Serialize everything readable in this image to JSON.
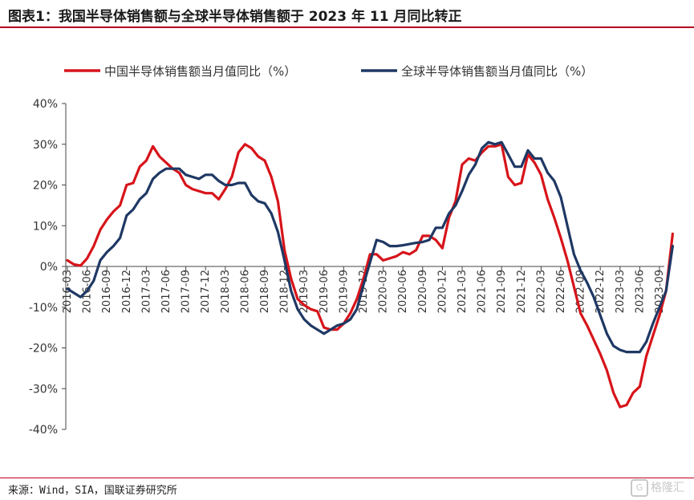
{
  "header": {
    "title": "图表1：我国半导体销售额与全球半导体销售额于 2023 年 11 月同比转正"
  },
  "footer": {
    "source": "来源：Wind，SIA，国联证券研究所",
    "watermark": "格隆汇"
  },
  "colors": {
    "china_series": "#d7141a",
    "global_series": "#1f3864",
    "rule": "#b5001e"
  },
  "chart_data": {
    "type": "line",
    "title": "",
    "xlabel": "",
    "ylabel": "",
    "ylim": [
      -40,
      40
    ],
    "yticks": [
      -40,
      -30,
      -20,
      -10,
      0,
      10,
      20,
      30,
      40
    ],
    "ytick_labels": [
      "-40%",
      "-30%",
      "-20%",
      "-10%",
      "0%",
      "10%",
      "20%",
      "30%",
      "40%"
    ],
    "xtick_labels": [
      "2016-03",
      "2016-06",
      "2016-09",
      "2016-12",
      "2017-03",
      "2017-06",
      "2017-09",
      "2017-12",
      "2018-03",
      "2018-06",
      "2018-09",
      "2018-12",
      "2019-03",
      "2019-06",
      "2019-09",
      "2019-12",
      "2020-03",
      "2020-06",
      "2020-09",
      "2020-12",
      "2021-03",
      "2021-06",
      "2021-09",
      "2021-12",
      "2022-03",
      "2022-06",
      "2022-09",
      "2022-12",
      "2023-03",
      "2023-06",
      "2023-09"
    ],
    "grid": false,
    "legend_position": "top",
    "x_start": "2016-03",
    "series": [
      {
        "name": "中国半导体销售额当月值同比（%）",
        "color": "#d7141a",
        "values": [
          1.5,
          0.5,
          0.2,
          2.0,
          5.0,
          9.0,
          11.5,
          13.5,
          15.0,
          20.0,
          20.5,
          24.5,
          26.0,
          29.5,
          27.0,
          25.5,
          24.0,
          23.0,
          20.0,
          19.0,
          18.5,
          18.0,
          18.0,
          16.5,
          19.0,
          22.0,
          28.0,
          30.0,
          29.0,
          27.0,
          26.0,
          22.0,
          16.0,
          4.0,
          -3.0,
          -8.0,
          -9.5,
          -10.5,
          -11.0,
          -15.0,
          -15.5,
          -15.5,
          -14.0,
          -11.5,
          -8.0,
          -3.0,
          3.0,
          3.0,
          1.5,
          2.0,
          2.5,
          3.5,
          3.0,
          4.0,
          7.5,
          7.5,
          6.5,
          4.5,
          12.0,
          16.0,
          25.0,
          26.5,
          26.0,
          28.0,
          29.5,
          29.5,
          30.0,
          22.0,
          20.0,
          20.5,
          27.5,
          25.5,
          22.5,
          16.5,
          12.0,
          7.0,
          1.5,
          -5.0,
          -11.5,
          -14.5,
          -18.0,
          -21.5,
          -25.5,
          -31.0,
          -34.5,
          -34.0,
          -31.0,
          -29.5,
          -22.0,
          -17.0,
          -12.0,
          -6.0,
          8.0
        ]
      },
      {
        "name": "全球半导体销售额当月值同比（%）",
        "color": "#1f3864",
        "values": [
          -5.5,
          -6.5,
          -7.5,
          -6.0,
          -3.5,
          1.5,
          3.5,
          5.0,
          7.0,
          12.5,
          14.0,
          16.5,
          18.0,
          21.5,
          23.0,
          24.0,
          24.0,
          24.0,
          22.5,
          22.0,
          21.5,
          22.5,
          22.5,
          21.0,
          20.0,
          20.0,
          20.5,
          20.5,
          17.5,
          16.0,
          15.5,
          13.0,
          8.5,
          1.5,
          -6.0,
          -10.5,
          -13.0,
          -14.5,
          -15.5,
          -16.5,
          -15.5,
          -14.5,
          -14.0,
          -13.0,
          -10.5,
          -4.5,
          1.0,
          6.5,
          6.0,
          5.0,
          5.0,
          5.2,
          5.5,
          5.8,
          6.0,
          6.5,
          9.5,
          9.5,
          13.0,
          15.0,
          18.5,
          22.5,
          25.0,
          29.0,
          30.5,
          30.0,
          30.5,
          27.5,
          24.5,
          24.5,
          28.5,
          26.5,
          26.5,
          23.0,
          21.0,
          17.0,
          10.0,
          3.0,
          -1.0,
          -4.0,
          -7.5,
          -12.0,
          -16.5,
          -19.5,
          -20.5,
          -21.0,
          -21.0,
          -21.0,
          -18.5,
          -14.0,
          -10.0,
          -6.0,
          5.0
        ]
      }
    ]
  }
}
